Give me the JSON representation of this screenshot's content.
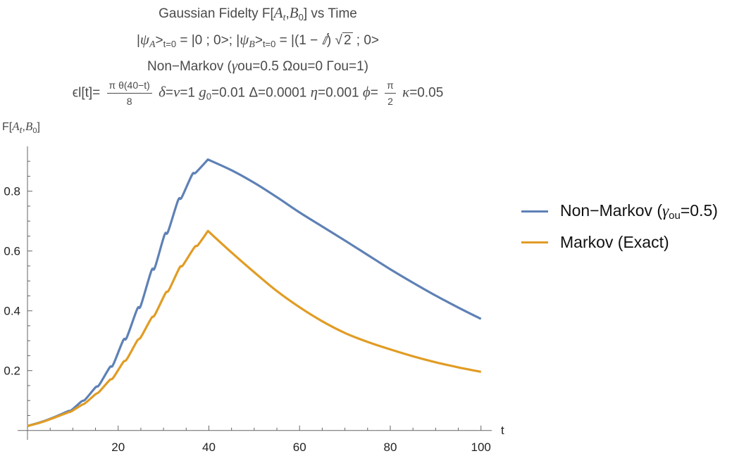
{
  "chart_data": {
    "type": "line",
    "title": {
      "line1": [
        [
          "Gaussian Fidelty F[",
          ""
        ],
        [
          "A",
          "i"
        ],
        [
          "t",
          "isub"
        ],
        [
          ",",
          ""
        ],
        [
          "B",
          "i"
        ],
        [
          "0",
          "sub"
        ],
        [
          "] vs Time",
          ""
        ]
      ],
      "line2": [
        [
          "|",
          ""
        ],
        [
          "ψ",
          "i"
        ],
        [
          "A",
          "isub"
        ],
        [
          ">",
          ""
        ],
        [
          "t=0",
          "sub"
        ],
        [
          " = |0 ; 0>; |",
          ""
        ],
        [
          "ψ",
          "i"
        ],
        [
          "B",
          "isub"
        ],
        [
          ">",
          ""
        ],
        [
          "t=0",
          "sub"
        ],
        [
          " = |(1 − ",
          ""
        ],
        [
          "ⅈ",
          "i"
        ],
        [
          ") √",
          ""
        ],
        [
          "2",
          "sq"
        ],
        [
          " ; 0>",
          ""
        ]
      ],
      "line3": [
        [
          "Non−Markov (",
          ""
        ],
        [
          "γ",
          "i"
        ],
        [
          "ou=0.5  Ωou=0 Γou=1)",
          ""
        ]
      ],
      "line4": [
        [
          "ϵl[t]= ",
          ""
        ],
        [
          "π θ(40−t)|8",
          "frac"
        ],
        [
          " ",
          ""
        ],
        [
          "δ",
          "i"
        ],
        [
          "=",
          ""
        ],
        [
          "ν",
          "i"
        ],
        [
          "=1 ",
          ""
        ],
        [
          "g",
          "i"
        ],
        [
          "0",
          "sub"
        ],
        [
          "=0.01 Δ=0.0001 ",
          ""
        ],
        [
          "η",
          "i"
        ],
        [
          "=0.001 ",
          ""
        ],
        [
          "ϕ",
          "i"
        ],
        [
          "= ",
          ""
        ],
        [
          "π|2",
          "frac"
        ],
        [
          " ",
          ""
        ],
        [
          "κ",
          "i"
        ],
        [
          "=0.05",
          ""
        ]
      ]
    },
    "ylabel": [
      [
        "F[",
        ""
      ],
      [
        "A",
        "i"
      ],
      [
        "t",
        "isub"
      ],
      [
        ",",
        ""
      ],
      [
        "B",
        "i"
      ],
      [
        "0",
        "sub"
      ],
      [
        "]",
        ""
      ]
    ],
    "xlabel": "t",
    "xlim": [
      0,
      100
    ],
    "ylim": [
      0,
      0.95
    ],
    "x_ticks": [
      20,
      40,
      60,
      80,
      100
    ],
    "x_tick_labels": [
      "20",
      "40",
      "60",
      "80",
      "100"
    ],
    "y_ticks": [
      0.2,
      0.4,
      0.6,
      0.8
    ],
    "y_tick_labels": [
      "0.2",
      "0.4",
      "0.6",
      "0.8"
    ],
    "grid": false,
    "legend_position": "right",
    "legend": [
      {
        "name": "Non−Markov (",
        "sym": "γ",
        "sub": "ou",
        "tail": "=0.5)"
      },
      {
        "name": "Markov (Exact)",
        "sym": "",
        "sub": "",
        "tail": ""
      }
    ],
    "series": [
      {
        "name": "Non-Markov (γou=0.5)",
        "color": "#5E81B5",
        "x": [
          0,
          3,
          6,
          8.9,
          9.7,
          11.9,
          12.7,
          15.0,
          15.8,
          18.1,
          18.9,
          21.1,
          21.9,
          24.2,
          25.0,
          27.3,
          28.1,
          30.2,
          31.0,
          33.2,
          34.0,
          36.3,
          37.1,
          39.8,
          45,
          50,
          55,
          60,
          65,
          70,
          75,
          80,
          85,
          90,
          95,
          100
        ],
        "y": [
          0.015,
          0.028,
          0.045,
          0.064,
          0.068,
          0.097,
          0.103,
          0.144,
          0.152,
          0.21,
          0.22,
          0.301,
          0.311,
          0.406,
          0.418,
          0.533,
          0.545,
          0.653,
          0.665,
          0.769,
          0.779,
          0.855,
          0.862,
          0.906,
          0.87,
          0.828,
          0.78,
          0.729,
          0.682,
          0.635,
          0.587,
          0.539,
          0.494,
          0.451,
          0.411,
          0.373
        ]
      },
      {
        "name": "Markov (Exact)",
        "color": "#E19C24",
        "x": [
          0,
          3,
          6,
          8.9,
          9.7,
          11.9,
          12.7,
          15.0,
          15.8,
          18.1,
          18.9,
          21.1,
          21.9,
          24.2,
          25.0,
          27.3,
          28.1,
          30.4,
          31.2,
          33.5,
          34.3,
          36.8,
          37.6,
          39.8,
          45,
          50,
          55,
          60,
          65,
          70,
          75,
          80,
          85,
          90,
          95,
          100
        ],
        "y": [
          0.015,
          0.027,
          0.043,
          0.06,
          0.064,
          0.085,
          0.091,
          0.121,
          0.129,
          0.168,
          0.176,
          0.228,
          0.238,
          0.3,
          0.312,
          0.375,
          0.387,
          0.458,
          0.47,
          0.543,
          0.553,
          0.612,
          0.62,
          0.667,
          0.595,
          0.529,
          0.466,
          0.412,
          0.365,
          0.326,
          0.296,
          0.271,
          0.248,
          0.228,
          0.211,
          0.196
        ]
      }
    ]
  }
}
